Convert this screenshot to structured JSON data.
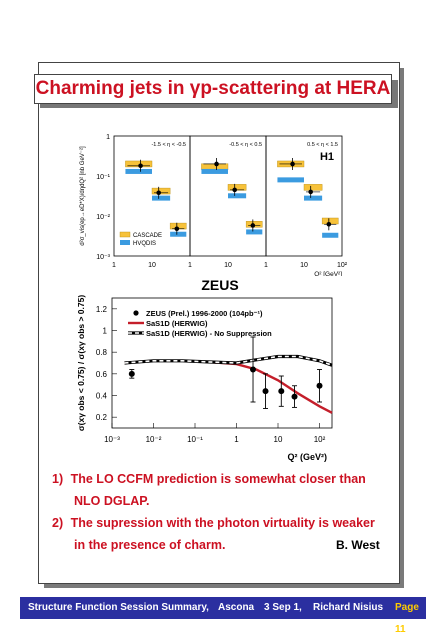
{
  "slide": {
    "title": "Charming jets in γp-scattering at HERA",
    "zeus_label": "ZEUS",
    "h1_label": "H1",
    "author": "B. West"
  },
  "conclusions": [
    {
      "num": "1)",
      "line1": "The LO CCFM prediction is somewhat closer than",
      "line2": "NLO DGLAP."
    },
    {
      "num": "2)",
      "line1": "The supression with the photon virtuality is weaker",
      "line2": "in the presence of charm."
    }
  ],
  "footer": {
    "summary": "Structure Function Session Summary,",
    "venue": "Ascona",
    "date": "3 Sep 1,",
    "speaker": "Richard Nisius",
    "page": "Page 11",
    "bg_color": "#2b2fa0",
    "page_color": "#ffcc00"
  },
  "chart_data": [
    {
      "type": "scatter",
      "name": "H1 panels",
      "ylabel": "d²σ_vis(ep→eD*X)/dηdQ² [nb GeV⁻²]",
      "xlabel": "Q² [GeV²]",
      "x_scale": "log",
      "y_scale": "log",
      "xlim": [
        1,
        100
      ],
      "ylim": [
        0.001,
        1
      ],
      "y_tick_labels": [
        "1",
        "10⁻¹",
        "10⁻²",
        "10⁻³"
      ],
      "x_tick_labels": [
        "1",
        "10",
        "10²"
      ],
      "legend": [
        "CASCADE",
        "HVQDIS"
      ],
      "colors": {
        "CASCADE": "#f7c23a",
        "HVQDIS": "#3b9be0"
      },
      "panels": [
        {
          "label": "-1.5 < η < -0.5",
          "data": [
            {
              "q2": 5,
              "y": 0.18
            },
            {
              "q2": 15,
              "y": 0.038
            },
            {
              "q2": 45,
              "y": 0.0048
            }
          ],
          "cascade": [
            0.2,
            0.042,
            0.0056
          ],
          "hvqdis": [
            0.13,
            0.028,
            0.0035
          ]
        },
        {
          "label": "-0.5 < η < 0.5",
          "data": [
            {
              "q2": 5,
              "y": 0.2
            },
            {
              "q2": 15,
              "y": 0.045
            },
            {
              "q2": 45,
              "y": 0.0058
            }
          ],
          "cascade": [
            0.17,
            0.052,
            0.0062
          ],
          "hvqdis": [
            0.13,
            0.032,
            0.004
          ]
        },
        {
          "label": "0.5 < η < 1.5",
          "data": [
            {
              "q2": 5,
              "y": 0.2
            },
            {
              "q2": 15,
              "y": 0.04
            },
            {
              "q2": 45,
              "y": 0.0062
            }
          ],
          "cascade": [
            0.2,
            0.052,
            0.0075
          ],
          "hvqdis": [
            0.08,
            0.028,
            0.0033
          ]
        }
      ]
    },
    {
      "type": "line",
      "name": "ZEUS ratio",
      "title": "ZEUS",
      "ylabel": "σ(xγ obs < 0.75) / σ(xγ obs > 0.75)",
      "xlabel": "Q² (GeV²)",
      "x_scale": "log",
      "xlim": [
        0.001,
        200
      ],
      "ylim": [
        0.1,
        1.3
      ],
      "x_tick_labels": [
        "10⁻³",
        "10⁻²",
        "10⁻¹",
        "1",
        "10",
        "10²"
      ],
      "y_tick_labels": [
        "0.2",
        "0.4",
        "0.6",
        "0.8",
        "1",
        "1.2"
      ],
      "legend": [
        "ZEUS (Prel.) 1996-2000 (104pb⁻¹)",
        "SaS1D (HERWIG)",
        "SaS1D (HERWIG) - No Suppression"
      ],
      "points": [
        {
          "x": 0.003,
          "y": 0.6,
          "err": 0.04
        },
        {
          "x": 2.5,
          "y": 0.64,
          "err": 0.3
        },
        {
          "x": 5,
          "y": 0.44,
          "err": 0.16
        },
        {
          "x": 12,
          "y": 0.44,
          "err": 0.14
        },
        {
          "x": 25,
          "y": 0.39,
          "err": 0.1
        },
        {
          "x": 100,
          "y": 0.49,
          "err": 0.15
        }
      ],
      "series": [
        {
          "name": "SaS1D (HERWIG)",
          "color": "#c41e2a",
          "style": "solid",
          "x": [
            0.002,
            0.01,
            0.05,
            0.2,
            1,
            3,
            10,
            30,
            100,
            200
          ],
          "y": [
            0.7,
            0.72,
            0.72,
            0.71,
            0.69,
            0.64,
            0.54,
            0.42,
            0.3,
            0.24
          ]
        },
        {
          "name": "SaS1D (HERWIG) - No Suppression",
          "color": "#000000",
          "style": "dashed",
          "x": [
            0.002,
            0.01,
            0.05,
            0.2,
            1,
            3,
            10,
            30,
            100,
            200
          ],
          "y": [
            0.7,
            0.72,
            0.72,
            0.71,
            0.7,
            0.73,
            0.76,
            0.76,
            0.72,
            0.68
          ]
        }
      ]
    }
  ]
}
